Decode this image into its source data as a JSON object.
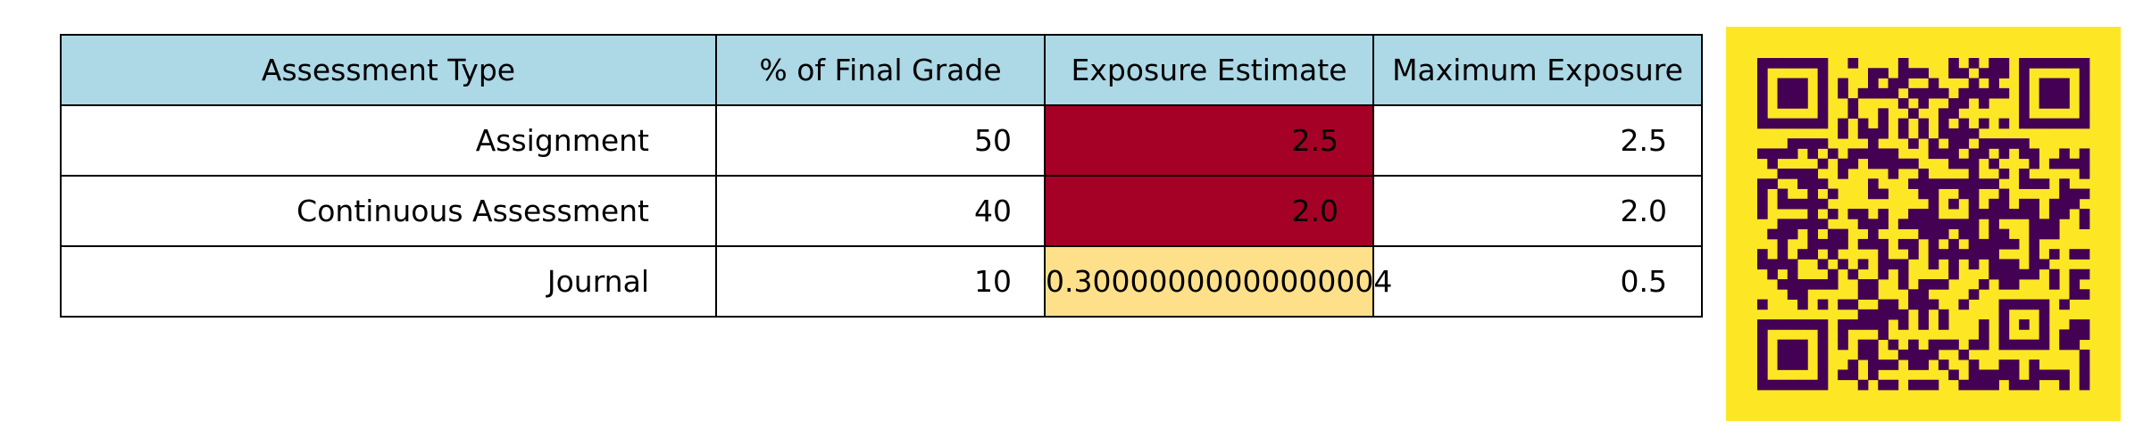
{
  "table": {
    "headers": [
      "Assessment Type",
      "% of Final Grade",
      "Exposure Estimate",
      "Maximum Exposure"
    ],
    "header_bg": "#add8e6",
    "rows": [
      {
        "type": "Assignment",
        "percent": "50",
        "exposure": "2.5",
        "max": "2.5",
        "exposure_bg": "#a50026"
      },
      {
        "type": "Continuous Assessment",
        "percent": "40",
        "exposure": "2.0",
        "max": "2.0",
        "exposure_bg": "#a50026"
      },
      {
        "type": "Journal",
        "percent": "10",
        "exposure": "0.30000000000000004",
        "max": "0.5",
        "exposure_bg": "#fee08b"
      }
    ]
  },
  "qr_code": {
    "icon": "qr-code-icon",
    "background": "#fde725",
    "foreground": "#440154"
  }
}
